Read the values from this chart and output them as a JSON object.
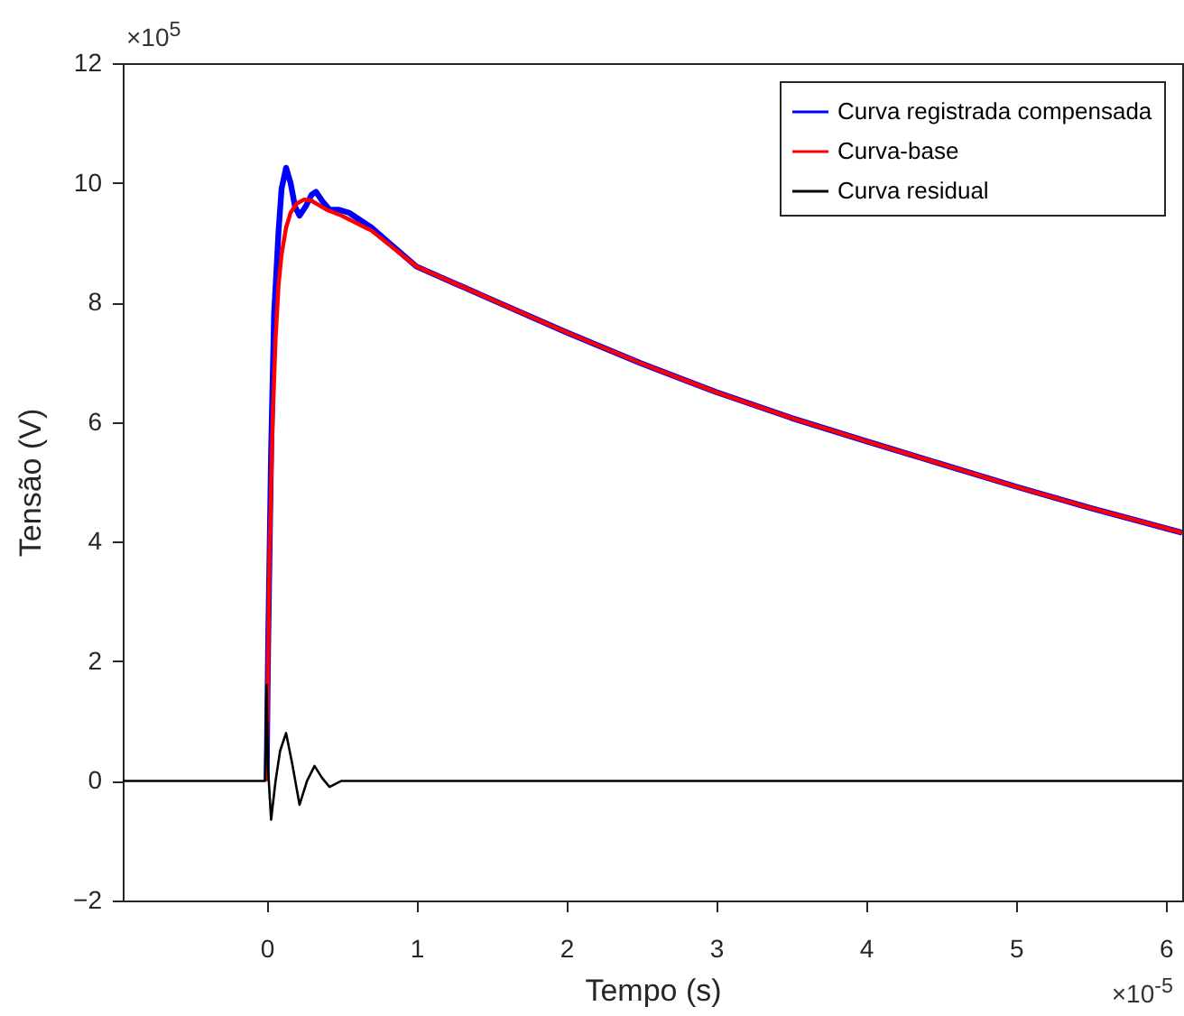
{
  "chart_data": {
    "type": "line",
    "xlabel": "Tempo (s)",
    "ylabel": "Tensão (V)",
    "annotations": [
      "×10$^{5}$",
      "×10$^{-5}$"
    ],
    "xlim": [
      -0.96,
      6.11
    ],
    "ylim": [
      -2,
      12
    ],
    "xticks": [
      0,
      1,
      2,
      3,
      4,
      5,
      6
    ],
    "yticks": [
      -2,
      0,
      2,
      4,
      6,
      8,
      10,
      12
    ],
    "grid": false,
    "legend": "top right",
    "marker": "none",
    "line_style": "solid",
    "series": [
      {
        "name": "Curva registrada compensada",
        "color": "#0000ff",
        "x": [
          0,
          0.01,
          0.03,
          0.05,
          0.08,
          0.1,
          0.13,
          0.16,
          0.19,
          0.22,
          0.26,
          0.3,
          0.33,
          0.37,
          0.42,
          0.48,
          0.55,
          0.7,
          1,
          1.5,
          2,
          2.5,
          3,
          3.5,
          4,
          4.5,
          5,
          5.5,
          6.11
        ],
        "values": [
          0,
          2.2,
          5.5,
          7.8,
          9.2,
          9.9,
          10.25,
          10,
          9.6,
          9.45,
          9.6,
          9.8,
          9.85,
          9.7,
          9.55,
          9.55,
          9.5,
          9.25,
          8.6,
          8.05,
          7.5,
          6.98,
          6.5,
          6.07,
          5.68,
          5.3,
          4.92,
          4.56,
          4.15
        ]
      },
      {
        "name": "Curva-base",
        "color": "#ff0000",
        "x": [
          0,
          0.01,
          0.02,
          0.04,
          0.06,
          0.08,
          0.1,
          0.13,
          0.16,
          0.2,
          0.25,
          0.3,
          0.4,
          0.5,
          0.7,
          1,
          1.5,
          2,
          2.5,
          3,
          3.5,
          4,
          4.5,
          5,
          5.5,
          6.11
        ],
        "values": [
          0,
          2,
          3.8,
          6,
          7.4,
          8.3,
          8.8,
          9.25,
          9.5,
          9.65,
          9.72,
          9.7,
          9.55,
          9.45,
          9.2,
          8.6,
          8.05,
          7.5,
          6.98,
          6.5,
          6.07,
          5.68,
          5.3,
          4.92,
          4.56,
          4.15
        ]
      },
      {
        "name": "Curva residual",
        "color": "#000000",
        "x": [
          -0.96,
          -0.01,
          0,
          0.01,
          0.03,
          0.06,
          0.09,
          0.13,
          0.17,
          0.22,
          0.27,
          0.32,
          0.37,
          0.42,
          0.5,
          1,
          2,
          3,
          4,
          5,
          6.11
        ],
        "values": [
          0,
          0,
          1.6,
          0.2,
          -0.65,
          0,
          0.5,
          0.8,
          0.3,
          -0.4,
          0,
          0.25,
          0.05,
          -0.1,
          0,
          0,
          0,
          0,
          0,
          0,
          0
        ]
      }
    ]
  }
}
